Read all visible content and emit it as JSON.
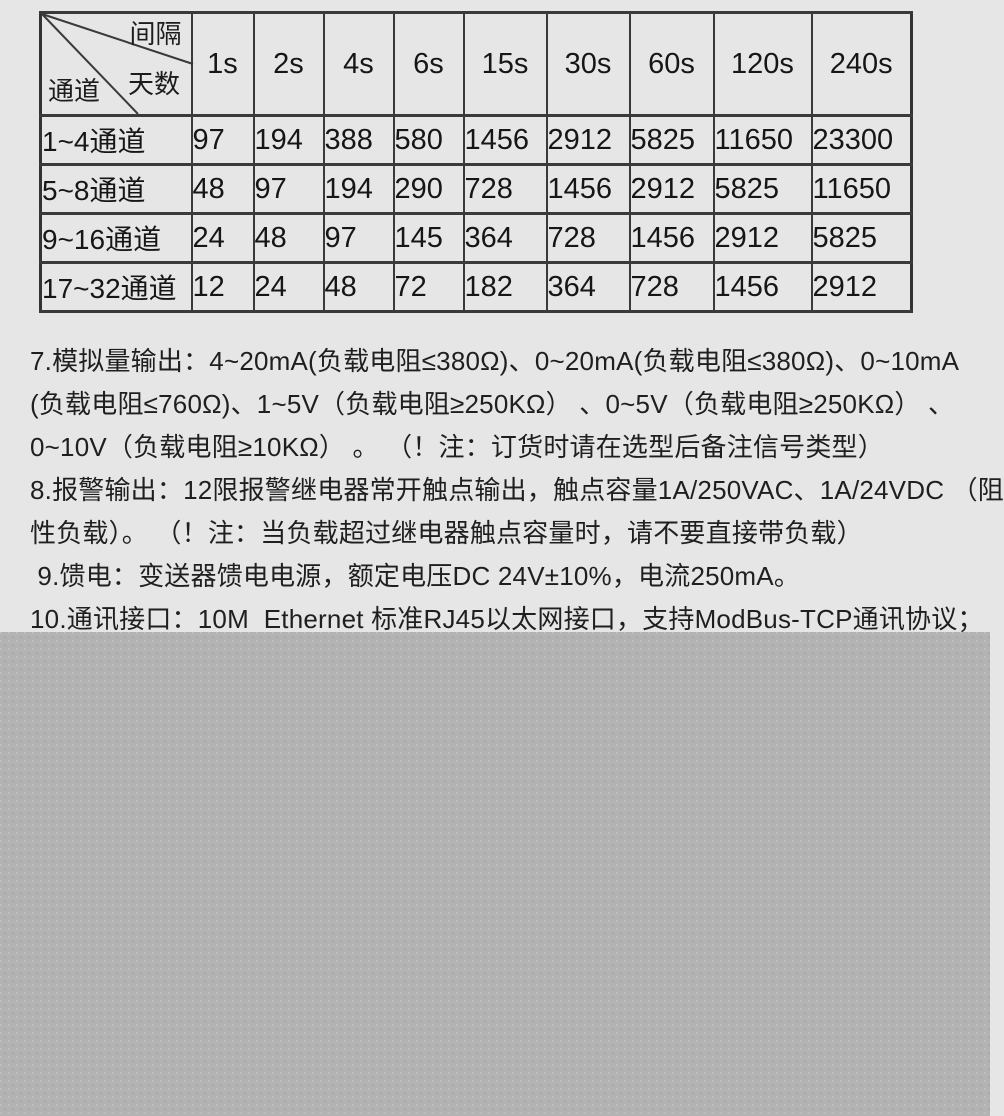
{
  "colors": {
    "page_bg": "#e7e6e6",
    "text": "#1f1f1f",
    "table_border": "#3a3a3a",
    "overlay_bg": "#b3b3b3",
    "overlay_dot": "#bdbdbd"
  },
  "record_table": {
    "corner": {
      "interval_label": "间隔",
      "days_label": "天数",
      "channel_label": "通道"
    },
    "interval_headers": [
      "1s",
      "2s",
      "4s",
      "6s",
      "15s",
      "30s",
      "60s",
      "120s",
      "240s"
    ],
    "rows": [
      {
        "channel": "1~4通道",
        "days": [
          "97",
          "194",
          "388",
          "580",
          "1456",
          "2912",
          "5825",
          "11650",
          "23300"
        ]
      },
      {
        "channel": "5~8通道",
        "days": [
          "48",
          "97",
          "194",
          "290",
          "728",
          "1456",
          "2912",
          "5825",
          "11650"
        ]
      },
      {
        "channel": "9~16通道",
        "days": [
          "24",
          "48",
          "97",
          "145",
          "364",
          "728",
          "1456",
          "2912",
          "5825"
        ]
      },
      {
        "channel": "17~32通道",
        "days": [
          "12",
          "24",
          "48",
          "72",
          "182",
          "364",
          "728",
          "1456",
          "2912"
        ]
      }
    ]
  },
  "spec_lines": [
    "7.模拟量输出：4~20mA(负载电阻≤380Ω)、0~20mA(负载电阻≤380Ω)、0~10mA",
    "(负载电阻≤760Ω)、1~5V（负载电阻≥250KΩ） 、0~5V（负载电阻≥250KΩ） 、",
    "0~10V（负载电阻≥10KΩ） 。 （！注：订货时请在选型后备注信号类型）",
    "8.报警输出：12限报警继电器常开触点输出，触点容量1A/250VAC、1A/24VDC （阻",
    "性负载）。 （！注：当负载超过继电器触点容量时，请不要直接带负载）",
    " 9.馈电：变送器馈电电源，额定电压DC 24V±10%，电流250mA。",
    "10.通讯接口：10M  Ethernet 标准RJ45以太网接口，支持ModBus-TCP通讯协议；"
  ]
}
